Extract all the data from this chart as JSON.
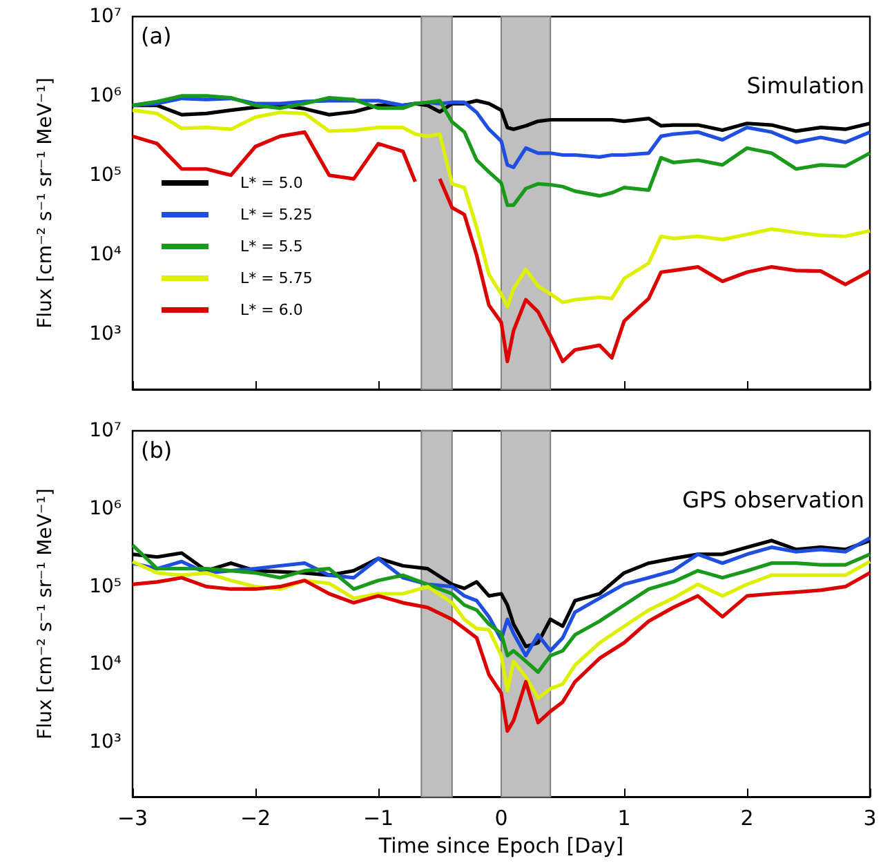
{
  "chart_data": [
    {
      "type": "line",
      "annotations": [
        "(a)",
        "Simulation"
      ],
      "ylabel": "Flux [cm⁻² s⁻¹ sr⁻¹ MeV⁻¹]",
      "log": "y",
      "grid": false,
      "legend": "left",
      "tick_labels": "y",
      "xlim": [
        -3,
        3
      ],
      "xticks": [
        -3,
        -2,
        -1,
        0,
        1,
        2,
        3
      ],
      "ylim": [
        200,
        10000000
      ],
      "yticks": [
        {
          "value": 1000,
          "label": "10³"
        },
        {
          "value": 10000,
          "label": "10⁴"
        },
        {
          "value": 100000,
          "label": "10⁵"
        },
        {
          "value": 1000000,
          "label": "10⁶"
        },
        {
          "value": 10000000,
          "label": "10⁷"
        }
      ],
      "bands": [
        {
          "axis": "x",
          "from": -0.65,
          "to": -0.4,
          "color": "#bfbfbf"
        },
        {
          "axis": "x",
          "from": 0,
          "to": 0.4,
          "color": "#bfbfbf"
        }
      ],
      "x": [
        -3,
        -2.8,
        -2.6,
        -2.4,
        -2.2,
        -2,
        -1.8,
        -1.6,
        -1.4,
        -1.2,
        -1,
        -0.8,
        -0.7,
        -0.6,
        -0.5,
        -0.4,
        -0.3,
        -0.2,
        -0.1,
        0,
        0.05,
        0.1,
        0.2,
        0.3,
        0.4,
        0.5,
        0.6,
        0.8,
        0.9,
        1,
        1.2,
        1.3,
        1.4,
        1.6,
        1.8,
        2,
        2.2,
        2.4,
        2.6,
        2.8,
        3
      ],
      "series": [
        {
          "name": "L* = 5.0",
          "color": "#000000",
          "values": [
            760000,
            760000,
            580000,
            600000,
            660000,
            720000,
            760000,
            690000,
            580000,
            630000,
            760000,
            760000,
            800000,
            760000,
            630000,
            800000,
            800000,
            870000,
            800000,
            660000,
            400000,
            380000,
            420000,
            480000,
            500000,
            500000,
            500000,
            500000,
            500000,
            480000,
            520000,
            420000,
            430000,
            430000,
            370000,
            450000,
            430000,
            360000,
            400000,
            380000,
            450000
          ]
        },
        {
          "name": "L* = 5.25",
          "color": "#1f4fe0",
          "values": [
            760000,
            800000,
            930000,
            900000,
            930000,
            800000,
            800000,
            850000,
            870000,
            870000,
            870000,
            760000,
            800000,
            830000,
            800000,
            830000,
            830000,
            620000,
            380000,
            270000,
            135000,
            126000,
            220000,
            190000,
            190000,
            180000,
            180000,
            170000,
            180000,
            180000,
            190000,
            310000,
            330000,
            350000,
            280000,
            400000,
            350000,
            260000,
            300000,
            260000,
            350000
          ]
        },
        {
          "name": "L* = 5.5",
          "color": "#1a9a1a",
          "values": [
            760000,
            850000,
            1000000,
            1000000,
            950000,
            760000,
            700000,
            800000,
            950000,
            900000,
            700000,
            700000,
            800000,
            830000,
            870000,
            470000,
            350000,
            155000,
            110000,
            80000,
            42000,
            42000,
            68000,
            78000,
            76000,
            72000,
            63000,
            55000,
            60000,
            70000,
            65000,
            166000,
            145000,
            155000,
            135000,
            220000,
            190000,
            120000,
            135000,
            130000,
            190000
          ]
        },
        {
          "name": "L* = 5.75",
          "color": "#ddf000",
          "values": [
            660000,
            600000,
            390000,
            400000,
            380000,
            540000,
            620000,
            600000,
            360000,
            370000,
            400000,
            400000,
            330000,
            310000,
            330000,
            78000,
            70000,
            22000,
            5600,
            3200,
            2200,
            3700,
            6500,
            4000,
            3200,
            2500,
            2700,
            2900,
            2800,
            5000,
            7800,
            17000,
            16000,
            17000,
            15500,
            18000,
            21000,
            19000,
            17500,
            17000,
            20000
          ]
        },
        {
          "name": "L* = 6.0",
          "color": "#dd0000",
          "values": [
            310000,
            250000,
            120000,
            120000,
            100000,
            230000,
            310000,
            350000,
            100000,
            90000,
            250000,
            200000,
            83000,
            null,
            90000,
            39000,
            32000,
            9800,
            2300,
            1400,
            450,
            1100,
            2700,
            1900,
            950,
            450,
            630,
            720,
            500,
            1450,
            2800,
            6000,
            6300,
            7000,
            4600,
            6000,
            7000,
            6300,
            6200,
            4200,
            6200
          ]
        }
      ]
    },
    {
      "type": "line",
      "annotations": [
        "(b)",
        "GPS observation"
      ],
      "xlabel": "Time since Epoch [Day]",
      "ylabel": "Flux [cm⁻² s⁻¹ sr⁻¹ MeV⁻¹]",
      "log": "y",
      "grid": false,
      "xlim": [
        -3,
        3
      ],
      "xticks": [
        {
          "value": -3,
          "label": "−3"
        },
        {
          "value": -2,
          "label": "−2"
        },
        {
          "value": -1,
          "label": "−1"
        },
        0,
        1,
        2,
        3
      ],
      "ylim": [
        200,
        10000000
      ],
      "yticks": [
        {
          "value": 1000,
          "label": "10³"
        },
        {
          "value": 10000,
          "label": "10⁴"
        },
        {
          "value": 100000,
          "label": "10⁵"
        },
        {
          "value": 1000000,
          "label": "10⁶"
        },
        {
          "value": 10000000,
          "label": "10⁷"
        }
      ],
      "bands": [
        {
          "axis": "x",
          "from": -0.65,
          "to": -0.4,
          "color": "#bfbfbf"
        },
        {
          "axis": "x",
          "from": 0,
          "to": 0.4,
          "color": "#bfbfbf"
        }
      ],
      "x": [
        -3,
        -2.8,
        -2.6,
        -2.4,
        -2.2,
        -2,
        -1.8,
        -1.6,
        -1.4,
        -1.2,
        -1,
        -0.8,
        -0.6,
        -0.4,
        -0.3,
        -0.2,
        -0.1,
        0,
        0.05,
        0.1,
        0.2,
        0.3,
        0.4,
        0.5,
        0.6,
        0.8,
        1,
        1.2,
        1.4,
        1.6,
        1.8,
        2,
        2.2,
        2.4,
        2.6,
        2.8,
        3
      ],
      "series": [
        {
          "color": "#000000",
          "values": [
            260000,
            240000,
            270000,
            160000,
            200000,
            160000,
            155000,
            150000,
            140000,
            160000,
            230000,
            185000,
            170000,
            107000,
            95000,
            115000,
            76000,
            81000,
            58000,
            33000,
            17000,
            19000,
            38000,
            31000,
            66000,
            81000,
            150000,
            200000,
            230000,
            260000,
            260000,
            320000,
            390000,
            300000,
            320000,
            300000,
            390000
          ]
        },
        {
          "color": "#1f4fe0",
          "values": [
            200000,
            170000,
            210000,
            150000,
            160000,
            170000,
            185000,
            200000,
            140000,
            130000,
            230000,
            130000,
            107000,
            100000,
            76000,
            66000,
            41000,
            21000,
            38000,
            25000,
            13000,
            24000,
            15000,
            22000,
            47000,
            71000,
            107000,
            130000,
            160000,
            260000,
            200000,
            260000,
            320000,
            280000,
            300000,
            280000,
            420000
          ]
        },
        {
          "color": "#1a9a1a",
          "values": [
            340000,
            170000,
            170000,
            170000,
            160000,
            150000,
            130000,
            160000,
            170000,
            93000,
            120000,
            140000,
            107000,
            81000,
            58000,
            50000,
            33000,
            25000,
            13000,
            15000,
            11000,
            8000,
            13000,
            15000,
            24000,
            36000,
            58000,
            93000,
            115000,
            160000,
            130000,
            160000,
            200000,
            200000,
            190000,
            190000,
            260000
          ]
        },
        {
          "color": "#ddf000",
          "values": [
            210000,
            150000,
            140000,
            150000,
            120000,
            100000,
            93000,
            120000,
            110000,
            71000,
            81000,
            81000,
            100000,
            62000,
            38000,
            29000,
            28000,
            13000,
            4600,
            11000,
            6900,
            3700,
            4900,
            5600,
            9800,
            19000,
            31000,
            50000,
            71000,
            107000,
            76000,
            107000,
            140000,
            140000,
            140000,
            140000,
            210000
          ]
        },
        {
          "color": "#dd0000",
          "values": [
            107000,
            115000,
            130000,
            100000,
            93000,
            93000,
            100000,
            120000,
            81000,
            62000,
            76000,
            62000,
            54000,
            38000,
            29000,
            22000,
            7400,
            4300,
            1400,
            1900,
            6000,
            1800,
            2500,
            3300,
            6000,
            12000,
            19000,
            36000,
            54000,
            76000,
            41000,
            76000,
            81000,
            85000,
            90000,
            100000,
            150000
          ]
        }
      ]
    }
  ]
}
